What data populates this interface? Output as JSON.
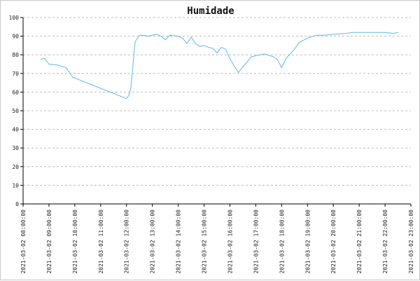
{
  "chart_data": {
    "type": "line",
    "title": "Humidade",
    "xlabel": "",
    "ylabel": "",
    "ylim": [
      0,
      100
    ],
    "y_ticks": [
      0,
      10,
      20,
      30,
      40,
      50,
      60,
      70,
      80,
      90,
      100
    ],
    "x_ticks": [
      "2021-03-02 08:00:00",
      "2021-03-02 09:00:00",
      "2021-03-02 10:00:00",
      "2021-03-02 11:00:00",
      "2021-03-02 12:00:00",
      "2021-03-02 13:00:00",
      "2021-03-02 14:00:00",
      "2021-03-02 15:00:00",
      "2021-03-02 16:00:00",
      "2021-03-02 17:00:00",
      "2021-03-02 18:00:00",
      "2021-03-02 19:00:00",
      "2021-03-02 20:00:00",
      "2021-03-02 21:00:00",
      "2021-03-02 22:00:00",
      "2021-03-02 23:00:00"
    ],
    "xlim": [
      "2021-03-02 08:00:00",
      "2021-03-02 23:00:00"
    ],
    "grid": true,
    "series": [
      {
        "color": "#5cb8e6",
        "points": [
          {
            "x": "2021-03-02 08:40",
            "y": 77.5
          },
          {
            "x": "2021-03-02 08:50",
            "y": 78
          },
          {
            "x": "2021-03-02 09:00",
            "y": 75
          },
          {
            "x": "2021-03-02 09:20",
            "y": 74.5
          },
          {
            "x": "2021-03-02 09:40",
            "y": 73
          },
          {
            "x": "2021-03-02 09:55",
            "y": 68
          },
          {
            "x": "2021-03-02 12:00",
            "y": 56.5
          },
          {
            "x": "2021-03-02 12:05",
            "y": 58
          },
          {
            "x": "2021-03-02 12:10",
            "y": 62
          },
          {
            "x": "2021-03-02 12:20",
            "y": 87
          },
          {
            "x": "2021-03-02 12:30",
            "y": 90.5
          },
          {
            "x": "2021-03-02 12:40",
            "y": 90.5
          },
          {
            "x": "2021-03-02 12:50",
            "y": 90
          },
          {
            "x": "2021-03-02 13:00",
            "y": 90.5
          },
          {
            "x": "2021-03-02 13:10",
            "y": 91
          },
          {
            "x": "2021-03-02 13:20",
            "y": 90
          },
          {
            "x": "2021-03-02 13:30",
            "y": 88
          },
          {
            "x": "2021-03-02 13:40",
            "y": 90.5
          },
          {
            "x": "2021-03-02 14:00",
            "y": 90
          },
          {
            "x": "2021-03-02 14:10",
            "y": 89
          },
          {
            "x": "2021-03-02 14:20",
            "y": 86
          },
          {
            "x": "2021-03-02 14:30",
            "y": 89.5
          },
          {
            "x": "2021-03-02 14:40",
            "y": 86
          },
          {
            "x": "2021-03-02 14:50",
            "y": 84.5
          },
          {
            "x": "2021-03-02 15:00",
            "y": 85
          },
          {
            "x": "2021-03-02 15:10",
            "y": 84
          },
          {
            "x": "2021-03-02 15:20",
            "y": 83.5
          },
          {
            "x": "2021-03-02 15:30",
            "y": 81
          },
          {
            "x": "2021-03-02 15:40",
            "y": 84
          },
          {
            "x": "2021-03-02 15:50",
            "y": 83
          },
          {
            "x": "2021-03-02 16:00",
            "y": 78
          },
          {
            "x": "2021-03-02 16:10",
            "y": 74
          },
          {
            "x": "2021-03-02 16:20",
            "y": 70.5
          },
          {
            "x": "2021-03-02 16:30",
            "y": 73.5
          },
          {
            "x": "2021-03-02 16:50",
            "y": 79
          },
          {
            "x": "2021-03-02 17:10",
            "y": 80
          },
          {
            "x": "2021-03-02 17:20",
            "y": 80.5
          },
          {
            "x": "2021-03-02 17:40",
            "y": 79
          },
          {
            "x": "2021-03-02 17:50",
            "y": 77.5
          },
          {
            "x": "2021-03-02 18:00",
            "y": 73
          },
          {
            "x": "2021-03-02 18:10",
            "y": 78
          },
          {
            "x": "2021-03-02 18:30",
            "y": 83
          },
          {
            "x": "2021-03-02 18:40",
            "y": 86.5
          },
          {
            "x": "2021-03-02 19:00",
            "y": 89
          },
          {
            "x": "2021-03-02 19:20",
            "y": 90.5
          },
          {
            "x": "2021-03-02 19:40",
            "y": 90.5
          },
          {
            "x": "2021-03-02 20:00",
            "y": 91
          },
          {
            "x": "2021-03-02 20:30",
            "y": 91.5
          },
          {
            "x": "2021-03-02 20:45",
            "y": 92
          },
          {
            "x": "2021-03-02 22:00",
            "y": 92
          },
          {
            "x": "2021-03-02 22:20",
            "y": 91.5
          },
          {
            "x": "2021-03-02 22:30",
            "y": 92
          }
        ]
      }
    ]
  }
}
